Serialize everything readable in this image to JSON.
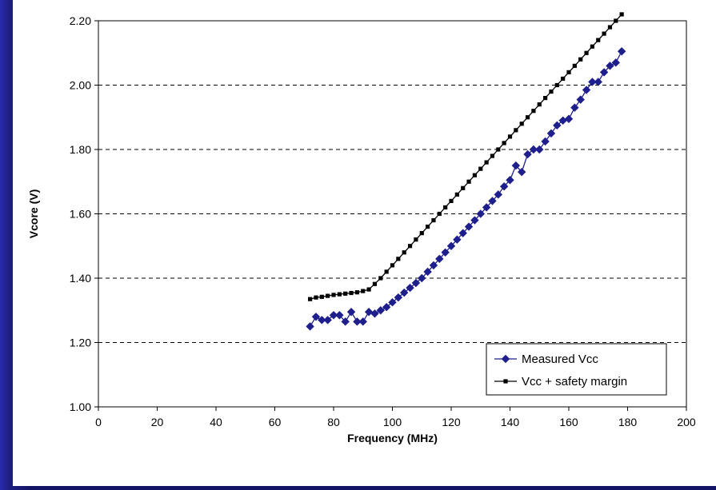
{
  "chart_data": {
    "type": "line",
    "title": "",
    "xlabel": "Frequency (MHz)",
    "ylabel": "Vcore (V)",
    "xlim": [
      0,
      200
    ],
    "ylim": [
      1.0,
      2.2
    ],
    "x_ticks": [
      "0",
      "20",
      "40",
      "60",
      "80",
      "100",
      "120",
      "140",
      "160",
      "180",
      "200"
    ],
    "y_ticks": [
      "1.00",
      "1.20",
      "1.40",
      "1.60",
      "1.80",
      "2.00",
      "2.20"
    ],
    "grid": "horizontal dashed",
    "legend_position": "bottom-right",
    "series": [
      {
        "name": "Measured Vcc",
        "color": "#1e1e8c",
        "marker": "diamond",
        "points": [
          [
            72,
            1.25
          ],
          [
            74,
            1.28
          ],
          [
            76,
            1.27
          ],
          [
            78,
            1.27
          ],
          [
            80,
            1.285
          ],
          [
            82,
            1.285
          ],
          [
            84,
            1.265
          ],
          [
            86,
            1.295
          ],
          [
            88,
            1.265
          ],
          [
            90,
            1.265
          ],
          [
            92,
            1.295
          ],
          [
            94,
            1.29
          ],
          [
            96,
            1.3
          ],
          [
            98,
            1.31
          ],
          [
            100,
            1.325
          ],
          [
            102,
            1.34
          ],
          [
            104,
            1.355
          ],
          [
            106,
            1.37
          ],
          [
            108,
            1.385
          ],
          [
            110,
            1.4
          ],
          [
            112,
            1.42
          ],
          [
            114,
            1.44
          ],
          [
            116,
            1.46
          ],
          [
            118,
            1.48
          ],
          [
            120,
            1.5
          ],
          [
            122,
            1.52
          ],
          [
            124,
            1.54
          ],
          [
            126,
            1.56
          ],
          [
            128,
            1.58
          ],
          [
            130,
            1.6
          ],
          [
            132,
            1.62
          ],
          [
            134,
            1.64
          ],
          [
            136,
            1.66
          ],
          [
            138,
            1.685
          ],
          [
            140,
            1.705
          ],
          [
            142,
            1.75
          ],
          [
            144,
            1.73
          ],
          [
            146,
            1.785
          ],
          [
            148,
            1.8
          ],
          [
            150,
            1.8
          ],
          [
            152,
            1.825
          ],
          [
            154,
            1.85
          ],
          [
            156,
            1.875
          ],
          [
            158,
            1.89
          ],
          [
            160,
            1.895
          ],
          [
            162,
            1.93
          ],
          [
            164,
            1.955
          ],
          [
            166,
            1.985
          ],
          [
            168,
            2.01
          ],
          [
            170,
            2.01
          ],
          [
            172,
            2.04
          ],
          [
            174,
            2.06
          ],
          [
            176,
            2.07
          ],
          [
            178,
            2.105
          ]
        ]
      },
      {
        "name": "Vcc + safety margin",
        "color": "#000000",
        "marker": "square",
        "points": [
          [
            72,
            1.335
          ],
          [
            74,
            1.34
          ],
          [
            76,
            1.342
          ],
          [
            78,
            1.345
          ],
          [
            80,
            1.348
          ],
          [
            82,
            1.35
          ],
          [
            84,
            1.352
          ],
          [
            86,
            1.354
          ],
          [
            88,
            1.356
          ],
          [
            90,
            1.36
          ],
          [
            92,
            1.365
          ],
          [
            94,
            1.382
          ],
          [
            96,
            1.4
          ],
          [
            98,
            1.42
          ],
          [
            100,
            1.44
          ],
          [
            102,
            1.46
          ],
          [
            104,
            1.48
          ],
          [
            106,
            1.5
          ],
          [
            108,
            1.52
          ],
          [
            110,
            1.54
          ],
          [
            112,
            1.56
          ],
          [
            114,
            1.58
          ],
          [
            116,
            1.6
          ],
          [
            118,
            1.62
          ],
          [
            120,
            1.64
          ],
          [
            122,
            1.66
          ],
          [
            124,
            1.68
          ],
          [
            126,
            1.7
          ],
          [
            128,
            1.72
          ],
          [
            130,
            1.74
          ],
          [
            132,
            1.76
          ],
          [
            134,
            1.78
          ],
          [
            136,
            1.8
          ],
          [
            138,
            1.82
          ],
          [
            140,
            1.84
          ],
          [
            142,
            1.86
          ],
          [
            144,
            1.88
          ],
          [
            146,
            1.9
          ],
          [
            148,
            1.92
          ],
          [
            150,
            1.94
          ],
          [
            152,
            1.96
          ],
          [
            154,
            1.98
          ],
          [
            156,
            2.0
          ],
          [
            158,
            2.02
          ],
          [
            160,
            2.04
          ],
          [
            162,
            2.06
          ],
          [
            164,
            2.08
          ],
          [
            166,
            2.1
          ],
          [
            168,
            2.12
          ],
          [
            170,
            2.14
          ],
          [
            172,
            2.16
          ],
          [
            174,
            2.18
          ],
          [
            176,
            2.2
          ],
          [
            178,
            2.22
          ]
        ]
      }
    ]
  }
}
